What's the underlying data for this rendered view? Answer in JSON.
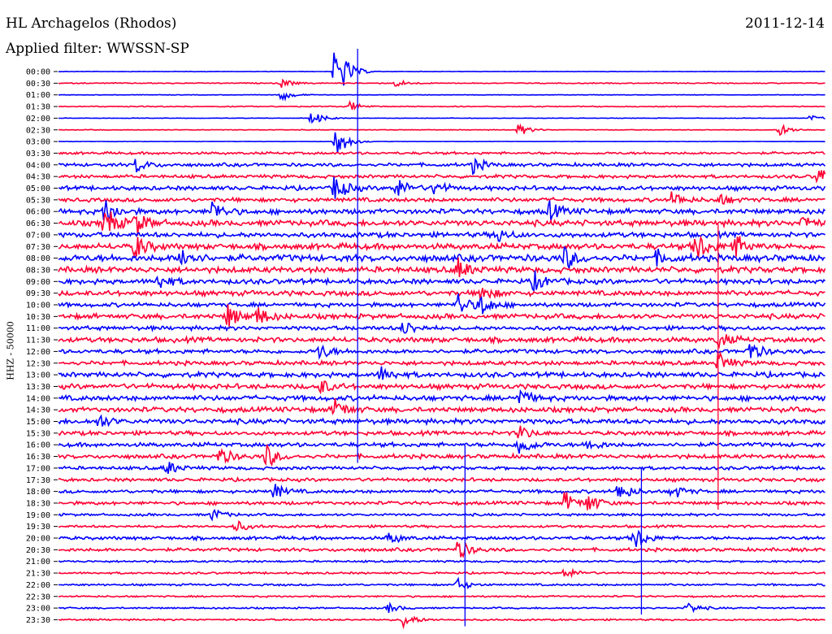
{
  "header": {
    "station": "HL Archagelos (Rhodos)",
    "filter": "Applied filter: WWSSN-SP",
    "date": "2011-12-14"
  },
  "channel_label": "HHZ - 50000",
  "colors": {
    "blue": "#0000ff",
    "red": "#ff0033"
  },
  "chart_data": {
    "type": "line",
    "title": "HL Archagelos (Rhodos)",
    "subtitle": "Applied filter: WWSSN-SP",
    "date": "2011-12-14",
    "ylabel": "HHZ - 50000",
    "row_labels": [
      "00:00",
      "00:30",
      "01:00",
      "01:30",
      "02:00",
      "02:30",
      "03:00",
      "03:30",
      "04:00",
      "04:30",
      "05:00",
      "05:30",
      "06:00",
      "06:30",
      "07:00",
      "07:30",
      "08:00",
      "08:30",
      "09:00",
      "09:30",
      "10:00",
      "10:30",
      "11:00",
      "11:30",
      "12:00",
      "12:30",
      "13:00",
      "13:30",
      "14:00",
      "14:30",
      "15:00",
      "15:30",
      "16:00",
      "16:30",
      "17:00",
      "17:30",
      "18:00",
      "18:30",
      "19:00",
      "19:30",
      "20:00",
      "20:30",
      "21:00",
      "21:30",
      "22:00",
      "22:30",
      "23:00",
      "23:30"
    ],
    "row_colors": "alternating blue/red per 30-minute trace",
    "noise_level": [
      0.3,
      0.6,
      0.3,
      0.6,
      0.3,
      0.4,
      0.2,
      1.5,
      2.0,
      2.0,
      2.5,
      2.5,
      3.0,
      3.5,
      3.0,
      3.5,
      4.0,
      3.5,
      3.0,
      3.0,
      2.5,
      3.0,
      2.5,
      3.0,
      2.5,
      2.5,
      3.0,
      3.0,
      3.0,
      3.0,
      3.0,
      2.5,
      2.5,
      2.5,
      2.0,
      2.0,
      2.0,
      2.0,
      1.5,
      1.5,
      2.0,
      2.0,
      1.2,
      1.2,
      1.2,
      1.0,
      1.0,
      1.0
    ],
    "events": [
      {
        "row": 0,
        "t": 0.37,
        "amp": 10
      },
      {
        "row": 0,
        "t": 0.36,
        "amp": 30
      },
      {
        "row": 1,
        "t": 0.29,
        "amp": 6
      },
      {
        "row": 1,
        "t": 0.44,
        "amp": 5
      },
      {
        "row": 2,
        "t": 0.29,
        "amp": 8
      },
      {
        "row": 3,
        "t": 0.38,
        "amp": 6
      },
      {
        "row": 4,
        "t": 0.33,
        "amp": 10
      },
      {
        "row": 4,
        "t": 0.98,
        "amp": 4
      },
      {
        "row": 5,
        "t": 0.6,
        "amp": 8
      },
      {
        "row": 5,
        "t": 0.94,
        "amp": 8
      },
      {
        "row": 6,
        "t": 0.36,
        "amp": 25
      },
      {
        "row": 8,
        "t": 0.1,
        "amp": 10
      },
      {
        "row": 8,
        "t": 0.54,
        "amp": 10
      },
      {
        "row": 9,
        "t": 0.99,
        "amp": 12
      },
      {
        "row": 10,
        "t": 0.36,
        "amp": 18
      },
      {
        "row": 10,
        "t": 0.44,
        "amp": 14
      },
      {
        "row": 10,
        "t": 0.49,
        "amp": 10
      },
      {
        "row": 11,
        "t": 0.8,
        "amp": 10
      },
      {
        "row": 11,
        "t": 0.86,
        "amp": 8
      },
      {
        "row": 12,
        "t": 0.06,
        "amp": 16
      },
      {
        "row": 12,
        "t": 0.2,
        "amp": 14
      },
      {
        "row": 12,
        "t": 0.64,
        "amp": 12
      },
      {
        "row": 13,
        "t": 0.06,
        "amp": 22
      },
      {
        "row": 13,
        "t": 0.1,
        "amp": 16
      },
      {
        "row": 13,
        "t": 0.97,
        "amp": 10
      },
      {
        "row": 14,
        "t": 0.57,
        "amp": 10
      },
      {
        "row": 15,
        "t": 0.1,
        "amp": 16
      },
      {
        "row": 15,
        "t": 0.83,
        "amp": 22
      },
      {
        "row": 15,
        "t": 0.88,
        "amp": 18
      },
      {
        "row": 16,
        "t": 0.16,
        "amp": 16
      },
      {
        "row": 16,
        "t": 0.66,
        "amp": 14
      },
      {
        "row": 16,
        "t": 0.78,
        "amp": 8
      },
      {
        "row": 17,
        "t": 0.52,
        "amp": 14
      },
      {
        "row": 18,
        "t": 0.13,
        "amp": 10
      },
      {
        "row": 18,
        "t": 0.62,
        "amp": 12
      },
      {
        "row": 19,
        "t": 0.55,
        "amp": 12
      },
      {
        "row": 20,
        "t": 0.52,
        "amp": 16
      },
      {
        "row": 20,
        "t": 0.55,
        "amp": 14
      },
      {
        "row": 21,
        "t": 0.22,
        "amp": 16
      },
      {
        "row": 21,
        "t": 0.26,
        "amp": 12
      },
      {
        "row": 22,
        "t": 0.45,
        "amp": 10
      },
      {
        "row": 23,
        "t": 0.86,
        "amp": 10
      },
      {
        "row": 24,
        "t": 0.34,
        "amp": 10
      },
      {
        "row": 24,
        "t": 0.9,
        "amp": 14
      },
      {
        "row": 25,
        "t": 0.86,
        "amp": 14
      },
      {
        "row": 26,
        "t": 0.42,
        "amp": 10
      },
      {
        "row": 27,
        "t": 0.34,
        "amp": 10
      },
      {
        "row": 28,
        "t": 0.6,
        "amp": 12
      },
      {
        "row": 29,
        "t": 0.36,
        "amp": 14
      },
      {
        "row": 30,
        "t": 0.05,
        "amp": 10
      },
      {
        "row": 31,
        "t": 0.6,
        "amp": 10
      },
      {
        "row": 32,
        "t": 0.6,
        "amp": 16
      },
      {
        "row": 32,
        "t": 0.69,
        "amp": 8
      },
      {
        "row": 33,
        "t": 0.21,
        "amp": 12
      },
      {
        "row": 33,
        "t": 0.27,
        "amp": 16
      },
      {
        "row": 34,
        "t": 0.14,
        "amp": 10
      },
      {
        "row": 36,
        "t": 0.28,
        "amp": 10
      },
      {
        "row": 36,
        "t": 0.73,
        "amp": 14
      },
      {
        "row": 36,
        "t": 0.8,
        "amp": 10
      },
      {
        "row": 37,
        "t": 0.66,
        "amp": 14
      },
      {
        "row": 37,
        "t": 0.69,
        "amp": 12
      },
      {
        "row": 38,
        "t": 0.2,
        "amp": 8
      },
      {
        "row": 39,
        "t": 0.23,
        "amp": 8
      },
      {
        "row": 40,
        "t": 0.43,
        "amp": 8
      },
      {
        "row": 40,
        "t": 0.75,
        "amp": 16
      },
      {
        "row": 41,
        "t": 0.52,
        "amp": 14
      },
      {
        "row": 43,
        "t": 0.66,
        "amp": 8
      },
      {
        "row": 44,
        "t": 0.52,
        "amp": 8
      },
      {
        "row": 46,
        "t": 0.43,
        "amp": 6
      },
      {
        "row": 46,
        "t": 0.82,
        "amp": 8
      },
      {
        "row": 47,
        "t": 0.45,
        "amp": 10
      }
    ],
    "vertical_spikes": [
      {
        "t": 0.39,
        "from_row": 0,
        "to_row": 33
      },
      {
        "t": 0.53,
        "from_row": 34,
        "to_row": 47
      },
      {
        "t": 0.76,
        "from_row": 36,
        "to_row": 46
      },
      {
        "t": 0.86,
        "from_row": 15,
        "to_row": 37
      }
    ]
  }
}
